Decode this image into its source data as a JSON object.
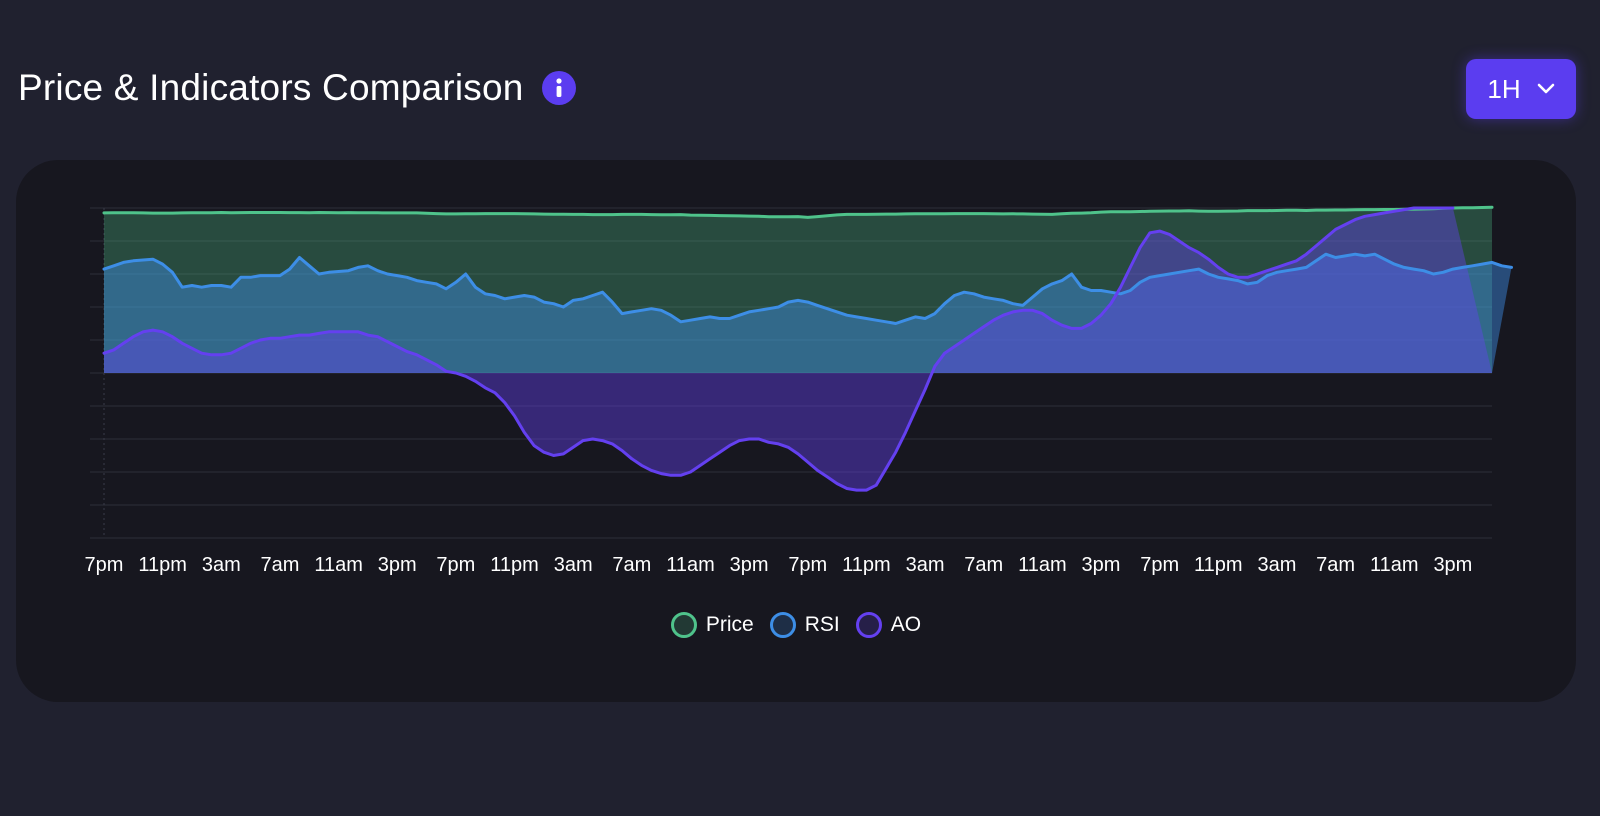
{
  "header": {
    "title": "Price & Indicators Comparison",
    "info_icon": "info-icon"
  },
  "timeframe": {
    "label": "1H",
    "icon": "chevron-down-icon"
  },
  "colors": {
    "background": "#20212f",
    "card": "#17171f",
    "accent": "#5b3df0",
    "price": "#4fc38b",
    "rsi": "#3d8ee6",
    "ao": "#6440f0"
  },
  "chart_data": {
    "type": "area",
    "title": "Price & Indicators Comparison",
    "x_labels": [
      "7pm",
      "11pm",
      "3am",
      "7am",
      "11am",
      "3pm",
      "7pm",
      "11pm",
      "3am",
      "7am",
      "11am",
      "3pm",
      "7pm",
      "11pm",
      "3am",
      "7am",
      "11am",
      "3pm",
      "7pm",
      "11pm",
      "3am",
      "7am",
      "11am",
      "3pm"
    ],
    "x_label_index": [
      0,
      6,
      12,
      18,
      24,
      30,
      36,
      42,
      48,
      54,
      60,
      66,
      72,
      78,
      84,
      90,
      96,
      102,
      108,
      114,
      120,
      126,
      132,
      138
    ],
    "grid": true,
    "ylim": [
      -100,
      100
    ],
    "yticks": [
      -80,
      -60,
      -40,
      -20,
      0,
      20,
      40,
      60,
      80,
      100
    ],
    "y_tick_labels_visible": false,
    "legend": [
      "Price",
      "RSI",
      "AO"
    ],
    "legend_position": "bottom-center",
    "series": [
      {
        "name": "Price",
        "values": [
          97,
          97.1,
          97.1,
          97.1,
          97,
          96.9,
          96.9,
          96.9,
          97,
          97.1,
          97.1,
          97.1,
          97.3,
          97.1,
          97.2,
          97.3,
          97.3,
          97.3,
          97.3,
          97.2,
          97.2,
          97.1,
          97.3,
          97.2,
          97.1,
          97.2,
          97.1,
          97.1,
          97.1,
          97,
          97,
          97,
          97,
          96.8,
          96.6,
          96.4,
          96.4,
          96.5,
          96.5,
          96.6,
          96.6,
          96.6,
          96.6,
          96.5,
          96.4,
          96.3,
          96.2,
          96.2,
          96.1,
          96.1,
          96,
          96,
          96,
          96.1,
          96.1,
          96.1,
          96,
          95.9,
          95.9,
          96,
          95.7,
          95.6,
          95.5,
          95.4,
          95.3,
          95.2,
          95.1,
          95,
          94.7,
          94.7,
          94.7,
          94.8,
          94.3,
          94.8,
          95.3,
          95.8,
          96.1,
          96.1,
          96.1,
          96.2,
          96.3,
          96.3,
          96.4,
          96.5,
          96.5,
          96.5,
          96.5,
          96.6,
          96.6,
          96.6,
          96.6,
          96.5,
          96.4,
          96.5,
          96.4,
          96.3,
          96.2,
          96.1,
          96.5,
          96.8,
          96.9,
          97.1,
          97.5,
          97.7,
          97.7,
          97.7,
          97.9,
          98,
          98.1,
          98.2,
          98.2,
          98.3,
          98.1,
          98,
          98,
          98.1,
          98.2,
          98.4,
          98.4,
          98.4,
          98.5,
          98.6,
          98.6,
          98.5,
          98.7,
          98.7,
          98.8,
          98.8,
          98.9,
          99,
          99,
          99.1,
          99.1,
          99.2,
          99.3,
          99.4,
          99.6,
          99.8,
          100,
          100.1,
          100.2,
          100.3,
          100.4
        ]
      },
      {
        "name": "RSI",
        "values": [
          63,
          65,
          67,
          68,
          68.5,
          69,
          66,
          61,
          52,
          53,
          52,
          53,
          53,
          52,
          58,
          58,
          59,
          59,
          59,
          63,
          70,
          65,
          60,
          61,
          61.5,
          62,
          64,
          65,
          62,
          60,
          59,
          58,
          56,
          55,
          54,
          51,
          55,
          60,
          52,
          48,
          47,
          45,
          46,
          47,
          46,
          43,
          42,
          40,
          44,
          45,
          47,
          49,
          43,
          36,
          37,
          38,
          39,
          38,
          35,
          31,
          32,
          33,
          34,
          33,
          33,
          35,
          37,
          38,
          39,
          40,
          43,
          44,
          43,
          41,
          39,
          37,
          35,
          34,
          33,
          32,
          31,
          30,
          32,
          34,
          33,
          36,
          42,
          47,
          49,
          48,
          46,
          45,
          44,
          42,
          41,
          46,
          51,
          54,
          56,
          60,
          52,
          50,
          50,
          49,
          48,
          50,
          55,
          58,
          59,
          60,
          61,
          62,
          63,
          60,
          58,
          57,
          56,
          54,
          55,
          59,
          61,
          62,
          63,
          64,
          68,
          72,
          70,
          71,
          72,
          71,
          72,
          69,
          66,
          64,
          63,
          62,
          60,
          61,
          63,
          64,
          65,
          66,
          67,
          65,
          64
        ]
      },
      {
        "name": "AO",
        "values": [
          12,
          14,
          18,
          22,
          25,
          26,
          25,
          22,
          18,
          15,
          12,
          11,
          11,
          12,
          15,
          18,
          20,
          21,
          21,
          22,
          23,
          23,
          24,
          25,
          25,
          25,
          25,
          23,
          22,
          19,
          16,
          13,
          11,
          8,
          5,
          1,
          0,
          -2,
          -5,
          -9,
          -12,
          -18,
          -26,
          -36,
          -44,
          -48,
          -50,
          -49,
          -45,
          -41,
          -40,
          -41,
          -43,
          -47,
          -52,
          -56,
          -59,
          -61,
          -62,
          -62,
          -60,
          -56,
          -52,
          -48,
          -44,
          -41,
          -40,
          -40,
          -42,
          -43,
          -45,
          -49,
          -54,
          -59,
          -63,
          -67,
          -70,
          -71,
          -71,
          -68,
          -58,
          -48,
          -36,
          -23,
          -10,
          4,
          12,
          16,
          20,
          24,
          28,
          32,
          35,
          37,
          38,
          38,
          36,
          32,
          29,
          27,
          27,
          30,
          35,
          42,
          52,
          64,
          76,
          85,
          86,
          84,
          80,
          76,
          73,
          69,
          64,
          60,
          58,
          58,
          60,
          62,
          64,
          66,
          68,
          72,
          77,
          82,
          87,
          90,
          93,
          95,
          96,
          97,
          98,
          99,
          100,
          100,
          100,
          100,
          100
        ]
      }
    ]
  },
  "legend_items": [
    {
      "label": "Price",
      "color": "#4fc38b"
    },
    {
      "label": "RSI",
      "color": "#3d8ee6"
    },
    {
      "label": "AO",
      "color": "#6440f0"
    }
  ]
}
